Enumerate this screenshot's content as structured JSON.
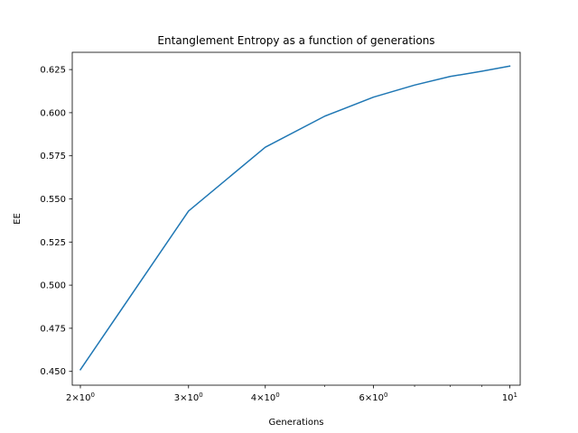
{
  "chart_data": {
    "type": "line",
    "title": "Entanglement Entropy as a function of generations",
    "xlabel": "Generations",
    "ylabel": "EE",
    "xscale": "log",
    "xlim": [
      1.94,
      10.4
    ],
    "ylim": [
      0.442,
      0.635
    ],
    "grid": false,
    "legend": "none",
    "x_ticks": [
      {
        "value": 2,
        "base": "2",
        "mult": "×",
        "ten": "10",
        "exp": "0"
      },
      {
        "value": 3,
        "base": "3",
        "mult": "×",
        "ten": "10",
        "exp": "0"
      },
      {
        "value": 4,
        "base": "4",
        "mult": "×",
        "ten": "10",
        "exp": "0"
      },
      {
        "value": 6,
        "base": "6",
        "mult": "×",
        "ten": "10",
        "exp": "0"
      },
      {
        "value": 10,
        "base": "",
        "mult": "",
        "ten": "10",
        "exp": "1"
      }
    ],
    "x_minor_ticks": [
      5,
      7,
      8,
      9
    ],
    "y_ticks": [
      {
        "value": 0.45,
        "label": "0.450"
      },
      {
        "value": 0.475,
        "label": "0.475"
      },
      {
        "value": 0.5,
        "label": "0.500"
      },
      {
        "value": 0.525,
        "label": "0.525"
      },
      {
        "value": 0.55,
        "label": "0.550"
      },
      {
        "value": 0.575,
        "label": "0.575"
      },
      {
        "value": 0.6,
        "label": "0.600"
      },
      {
        "value": 0.625,
        "label": "0.625"
      }
    ],
    "series": [
      {
        "color": "#1f77b4",
        "x": [
          2,
          3,
          4,
          5,
          6,
          7,
          8,
          9,
          10
        ],
        "y": [
          0.451,
          0.543,
          0.58,
          0.598,
          0.609,
          0.616,
          0.621,
          0.624,
          0.627
        ]
      }
    ]
  }
}
